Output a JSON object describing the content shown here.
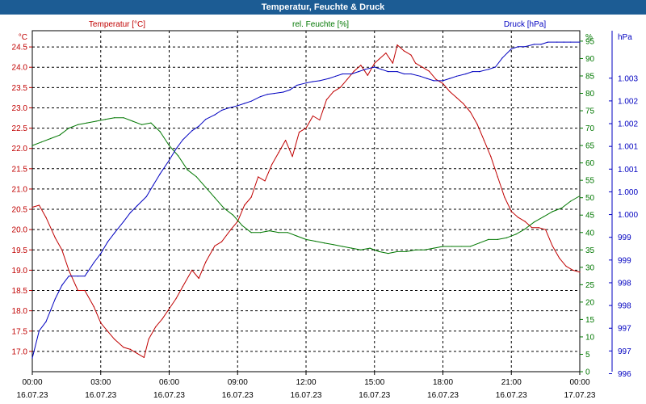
{
  "window": {
    "title": "Temperatur, Feuchte & Druck"
  },
  "colors": {
    "temperature": "#c00000",
    "humidity": "#007700",
    "pressure": "#0000c0",
    "axis_text": "#000000",
    "title_bg": "#1c5c94"
  },
  "chart_data": {
    "type": "line",
    "title": "Temperatur, Feuchte & Druck",
    "x_tick_labels": [
      [
        "00:00",
        "16.07.23"
      ],
      [
        "03:00",
        "16.07.23"
      ],
      [
        "06:00",
        "16.07.23"
      ],
      [
        "09:00",
        "16.07.23"
      ],
      [
        "12:00",
        "16.07.23"
      ],
      [
        "15:00",
        "16.07.23"
      ],
      [
        "18:00",
        "16.07.23"
      ],
      [
        "21:00",
        "16.07.23"
      ],
      [
        "00:00",
        "17.07.23"
      ]
    ],
    "x_range_hours": [
      0,
      24
    ],
    "grid": true,
    "axes": {
      "temperature": {
        "label": "Temperatur [°C]",
        "unit": "°C",
        "ylim": [
          16.5,
          24.9
        ],
        "ticks": [
          "17.0",
          "17.5",
          "18.0",
          "18.5",
          "19.0",
          "19.5",
          "20.0",
          "20.5",
          "21.0",
          "21.5",
          "22.0",
          "22.5",
          "23.0",
          "23.5",
          "24.0",
          "24.5"
        ]
      },
      "humidity": {
        "label": "rel. Feuchte [%]",
        "unit": "%",
        "ylim": [
          0,
          98
        ],
        "ticks": [
          "0",
          "5",
          "10",
          "15",
          "20",
          "25",
          "30",
          "35",
          "40",
          "45",
          "50",
          "55",
          "60",
          "65",
          "70",
          "75",
          "80",
          "85",
          "90",
          "95"
        ]
      },
      "pressure": {
        "label": "Druck [hPa]",
        "unit": "hPa",
        "ylim": [
          995.6,
          1003.1
        ],
        "ticks": [
          "996",
          "997",
          "997",
          "998",
          "998",
          "999",
          "999",
          "1.000",
          "1.000",
          "1.001",
          "1.001",
          "1.002",
          "1.002",
          "1.003"
        ]
      }
    },
    "series": [
      {
        "name": "Temperatur [°C]",
        "axis": "temperature",
        "x": [
          0,
          0.3,
          0.6,
          1.0,
          1.3,
          1.6,
          2.0,
          2.3,
          2.7,
          3.0,
          3.3,
          3.6,
          4.0,
          4.3,
          4.6,
          4.9,
          5.1,
          5.4,
          5.7,
          6.0,
          6.3,
          6.6,
          7.0,
          7.3,
          7.6,
          8.0,
          8.3,
          8.7,
          9.0,
          9.3,
          9.6,
          9.9,
          10.2,
          10.5,
          10.8,
          11.1,
          11.4,
          11.7,
          12.0,
          12.3,
          12.6,
          12.9,
          13.2,
          13.5,
          13.8,
          14.1,
          14.4,
          14.7,
          15.0,
          15.2,
          15.5,
          15.8,
          16.0,
          16.3,
          16.6,
          16.8,
          17.1,
          17.4,
          17.7,
          18.0,
          18.3,
          18.6,
          18.9,
          19.2,
          19.5,
          19.8,
          20.1,
          20.4,
          20.7,
          21.0,
          21.3,
          21.6,
          21.9,
          22.2,
          22.5,
          22.8,
          23.1,
          23.4,
          23.7,
          24.0
        ],
        "values": [
          20.55,
          20.6,
          20.3,
          19.8,
          19.5,
          19.0,
          18.5,
          18.5,
          18.1,
          17.7,
          17.5,
          17.3,
          17.1,
          17.05,
          16.95,
          16.85,
          17.3,
          17.6,
          17.8,
          18.05,
          18.3,
          18.6,
          19.0,
          18.8,
          19.2,
          19.6,
          19.7,
          20.0,
          20.2,
          20.6,
          20.8,
          21.3,
          21.2,
          21.6,
          21.9,
          22.2,
          21.8,
          22.4,
          22.5,
          22.8,
          22.7,
          23.2,
          23.4,
          23.5,
          23.7,
          23.9,
          24.05,
          23.8,
          24.1,
          24.2,
          24.35,
          24.1,
          24.55,
          24.4,
          24.3,
          24.1,
          24.0,
          23.9,
          23.7,
          23.6,
          23.4,
          23.25,
          23.1,
          22.9,
          22.6,
          22.2,
          21.8,
          21.3,
          20.8,
          20.45,
          20.3,
          20.2,
          20.05,
          20.05,
          20.0,
          19.6,
          19.3,
          19.1,
          19.0,
          18.95
        ]
      },
      {
        "name": "rel. Feuchte [%]",
        "axis": "humidity",
        "x": [
          0,
          0.4,
          0.8,
          1.2,
          1.6,
          2.0,
          2.4,
          2.8,
          3.2,
          3.6,
          4.0,
          4.4,
          4.8,
          5.2,
          5.6,
          6.0,
          6.4,
          6.8,
          7.2,
          7.6,
          8.0,
          8.4,
          8.8,
          9.2,
          9.6,
          10.0,
          10.4,
          10.8,
          11.2,
          11.6,
          12.0,
          12.4,
          12.8,
          13.2,
          13.6,
          14.0,
          14.4,
          14.8,
          15.2,
          15.6,
          16.0,
          16.4,
          16.8,
          17.2,
          17.6,
          18.0,
          18.4,
          18.8,
          19.2,
          19.6,
          20.0,
          20.4,
          20.8,
          21.2,
          21.6,
          22.0,
          22.4,
          22.8,
          23.2,
          23.6,
          24.0
        ],
        "values": [
          65,
          66,
          67,
          68,
          70,
          71,
          71.5,
          72,
          72.5,
          73,
          73,
          72,
          71,
          71.5,
          69,
          65,
          62,
          58,
          56,
          53,
          50,
          47,
          45,
          42,
          40,
          40,
          40.5,
          40,
          40,
          39,
          38,
          37.5,
          37,
          36.5,
          36,
          35.5,
          35,
          35.5,
          34.5,
          34,
          34.5,
          34.5,
          35,
          35,
          35.5,
          36,
          36,
          36,
          36,
          37,
          38,
          38,
          38.5,
          39.5,
          41,
          43,
          44.5,
          46,
          47,
          49,
          50.5
        ]
      },
      {
        "name": "Druck [hPa]",
        "axis": "pressure",
        "x": [
          0,
          0.3,
          0.6,
          1.0,
          1.3,
          1.6,
          2.0,
          2.3,
          2.7,
          3.0,
          3.3,
          3.6,
          4.0,
          4.3,
          4.6,
          5.0,
          5.3,
          5.6,
          6.0,
          6.3,
          6.6,
          7.0,
          7.3,
          7.6,
          8.0,
          8.3,
          8.6,
          9.0,
          9.3,
          9.6,
          10.0,
          10.3,
          10.6,
          11.0,
          11.3,
          11.6,
          12.0,
          12.3,
          12.6,
          13.0,
          13.3,
          13.6,
          14.0,
          14.3,
          14.6,
          15.0,
          15.3,
          15.6,
          16.0,
          16.3,
          16.6,
          17.0,
          17.3,
          17.6,
          18.0,
          18.3,
          18.6,
          19.0,
          19.3,
          19.6,
          20.0,
          20.3,
          20.6,
          21.0,
          21.3,
          21.6,
          22.0,
          22.3,
          22.6,
          23.0,
          23.3,
          23.6,
          24.0
        ],
        "values": [
          995.9,
          996.5,
          996.7,
          997.2,
          997.5,
          997.7,
          997.7,
          997.7,
          998.0,
          998.2,
          998.45,
          998.65,
          998.9,
          999.1,
          999.25,
          999.45,
          999.7,
          999.95,
          1000.25,
          1000.5,
          1000.7,
          1000.9,
          1001.0,
          1001.15,
          1001.25,
          1001.35,
          1001.4,
          1001.45,
          1001.5,
          1001.55,
          1001.65,
          1001.7,
          1001.72,
          1001.75,
          1001.8,
          1001.9,
          1001.95,
          1001.98,
          1002.0,
          1002.05,
          1002.1,
          1002.15,
          1002.15,
          1002.2,
          1002.25,
          1002.3,
          1002.25,
          1002.2,
          1002.2,
          1002.15,
          1002.15,
          1002.1,
          1002.05,
          1002.0,
          1002.0,
          1002.05,
          1002.1,
          1002.15,
          1002.2,
          1002.2,
          1002.25,
          1002.3,
          1002.5,
          1002.7,
          1002.75,
          1002.75,
          1002.8,
          1002.8,
          1002.85,
          1002.85,
          1002.85,
          1002.85,
          1002.85
        ]
      }
    ]
  }
}
